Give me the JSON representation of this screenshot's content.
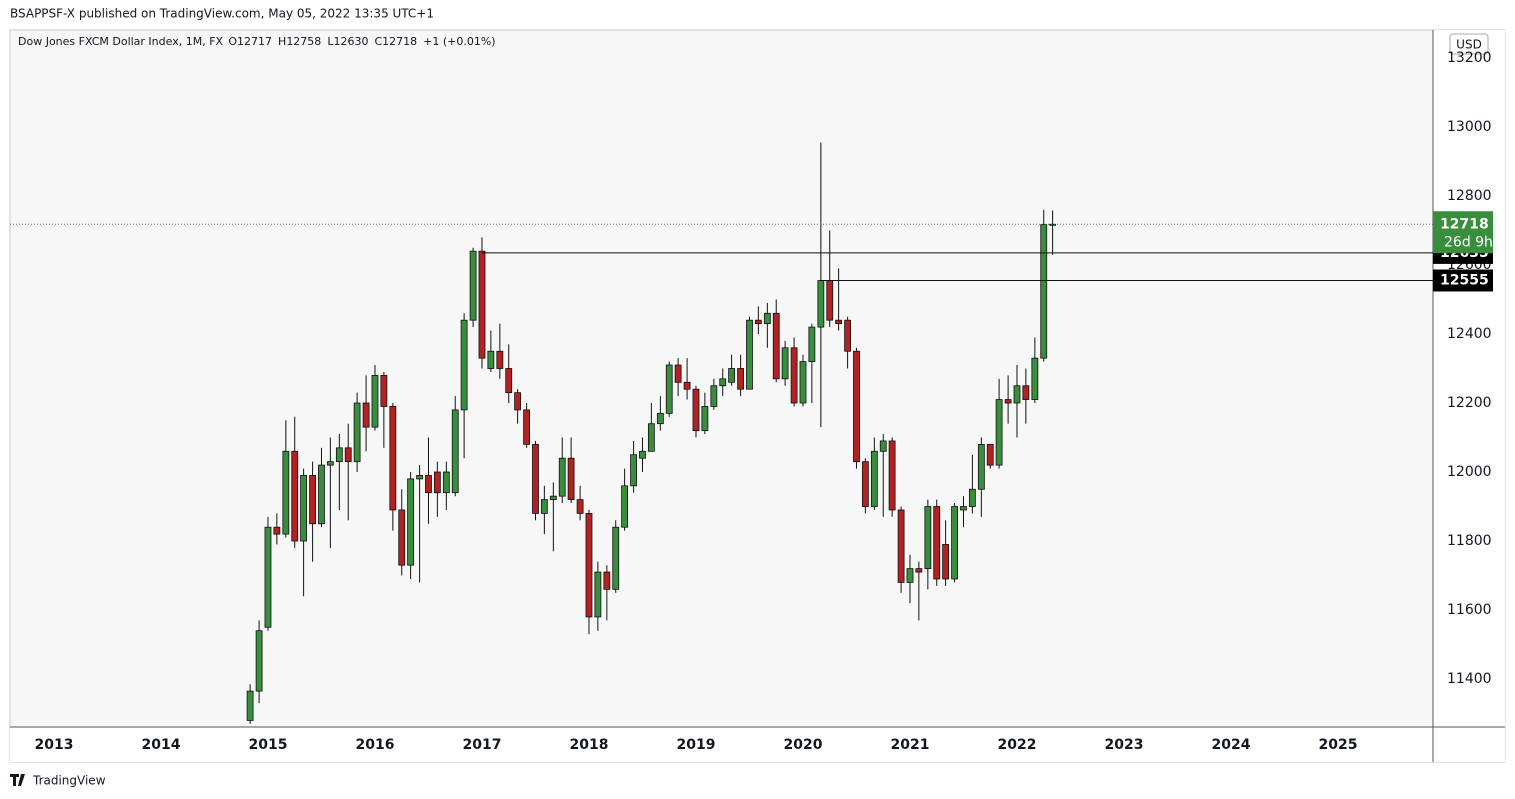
{
  "page": {
    "published": "BSAPPSF-X published on TradingView.com, May 05, 2022 13:35 UTC+1",
    "brand": "TradingView"
  },
  "chart_data": {
    "type": "candlestick",
    "title": "Dow Jones FXCM Dollar Index, 1M, FX",
    "header_values": [
      {
        "label": "O",
        "value": 12717
      },
      {
        "label": "H",
        "value": 12758
      },
      {
        "label": "L",
        "value": 12630
      },
      {
        "label": "C",
        "value": 12718
      }
    ],
    "change": "+1 (+0.01%)",
    "currency": "USD",
    "countdown": "26d 9h",
    "up_color": "#388e3c",
    "down_color": "#b22222",
    "x": [
      2014.833,
      2014.917,
      2015,
      2015.083,
      2015.167,
      2015.25,
      2015.333,
      2015.417,
      2015.5,
      2015.583,
      2015.667,
      2015.75,
      2015.833,
      2015.917,
      2016,
      2016.083,
      2016.167,
      2016.25,
      2016.333,
      2016.417,
      2016.5,
      2016.583,
      2016.667,
      2016.75,
      2016.833,
      2016.917,
      2017,
      2017.083,
      2017.167,
      2017.25,
      2017.333,
      2017.417,
      2017.5,
      2017.583,
      2017.667,
      2017.75,
      2017.833,
      2017.917,
      2018,
      2018.083,
      2018.167,
      2018.25,
      2018.333,
      2018.417,
      2018.5,
      2018.583,
      2018.667,
      2018.75,
      2018.833,
      2018.917,
      2019,
      2019.083,
      2019.167,
      2019.25,
      2019.333,
      2019.417,
      2019.5,
      2019.583,
      2019.667,
      2019.75,
      2019.833,
      2019.917,
      2020,
      2020.083,
      2020.167,
      2020.25,
      2020.333,
      2020.417,
      2020.5,
      2020.583,
      2020.667,
      2020.75,
      2020.833,
      2020.917,
      2021,
      2021.083,
      2021.167,
      2021.25,
      2021.333,
      2021.417,
      2021.5,
      2021.583,
      2021.667,
      2021.75,
      2021.833,
      2021.917,
      2022,
      2022.083,
      2022.167,
      2022.25,
      2022.333
    ],
    "open": [
      11280,
      11365,
      11550,
      11840,
      11820,
      12060,
      11800,
      11990,
      11850,
      12020,
      12030,
      12070,
      12030,
      12200,
      12130,
      12280,
      12190,
      11890,
      11730,
      11980,
      11990,
      12000,
      11940,
      11940,
      12180,
      12440,
      12640,
      12300,
      12350,
      12300,
      12230,
      12180,
      12080,
      11880,
      11920,
      11930,
      12040,
      11920,
      11880,
      11580,
      11710,
      11660,
      11840,
      11960,
      12040,
      12060,
      12140,
      12170,
      12310,
      12260,
      12240,
      12120,
      12190,
      12250,
      12260,
      12300,
      12240,
      12440,
      12430,
      12460,
      12270,
      12360,
      12200,
      12320,
      12420,
      12555,
      12440,
      12440,
      12350,
      12030,
      11900,
      12060,
      12090,
      11890,
      11680,
      11720,
      11720,
      11900,
      11790,
      11690,
      11890,
      11900,
      11950,
      12080,
      12020,
      12210,
      12200,
      12250,
      12210,
      12330,
      12717
    ],
    "high": [
      11385,
      11570,
      11870,
      11880,
      12150,
      12160,
      12010,
      12030,
      12070,
      12100,
      12110,
      12140,
      12230,
      12280,
      12310,
      12290,
      12200,
      11950,
      12000,
      12020,
      12100,
      12030,
      12030,
      12220,
      12460,
      12650,
      12680,
      12410,
      12430,
      12370,
      12240,
      12200,
      12090,
      11960,
      11970,
      12100,
      12100,
      11960,
      11890,
      11740,
      11730,
      11860,
      12010,
      12090,
      12100,
      12200,
      12220,
      12320,
      12330,
      12330,
      12250,
      12230,
      12270,
      12300,
      12340,
      12340,
      12450,
      12480,
      12490,
      12500,
      12380,
      12390,
      12340,
      12430,
      12955,
      12700,
      12590,
      12450,
      12360,
      12040,
      12100,
      12110,
      12100,
      11900,
      11760,
      11740,
      11920,
      11920,
      11860,
      11910,
      11930,
      12050,
      12100,
      12080,
      12270,
      12280,
      12310,
      12300,
      12390,
      12760,
      12758
    ],
    "low": [
      11270,
      11330,
      11540,
      11790,
      11810,
      11780,
      11640,
      11740,
      11840,
      11780,
      11890,
      11860,
      12000,
      12060,
      12120,
      12070,
      11830,
      11700,
      11690,
      11680,
      11850,
      11870,
      11890,
      11930,
      12040,
      12420,
      12300,
      12290,
      12270,
      12200,
      12140,
      12070,
      11860,
      11820,
      11770,
      11910,
      11910,
      11860,
      11530,
      11540,
      11570,
      11650,
      11830,
      11940,
      12000,
      12060,
      12120,
      12160,
      12220,
      12210,
      12100,
      12110,
      12180,
      12220,
      12250,
      12220,
      12240,
      12400,
      12360,
      12260,
      12250,
      12190,
      12190,
      12200,
      12130,
      12420,
      12410,
      12300,
      12010,
      11880,
      11890,
      11870,
      11870,
      11650,
      11620,
      11570,
      11660,
      11670,
      11670,
      11680,
      11840,
      11880,
      11870,
      12010,
      12010,
      12140,
      12100,
      12140,
      12200,
      12320,
      12630
    ],
    "close": [
      11365,
      11540,
      11840,
      11820,
      12060,
      11800,
      11990,
      11850,
      12020,
      12030,
      12070,
      12030,
      12200,
      12130,
      12280,
      12190,
      11890,
      11730,
      11980,
      11990,
      11940,
      11940,
      12000,
      12180,
      12440,
      12640,
      12330,
      12350,
      12300,
      12230,
      12180,
      12080,
      11880,
      11920,
      11930,
      12040,
      11920,
      11880,
      11580,
      11710,
      11660,
      11840,
      11960,
      12050,
      12060,
      12140,
      12170,
      12310,
      12260,
      12240,
      12120,
      12190,
      12250,
      12270,
      12300,
      12240,
      12440,
      12430,
      12460,
      12270,
      12360,
      12200,
      12320,
      12420,
      12555,
      12440,
      12430,
      12350,
      12030,
      11900,
      12060,
      12090,
      11890,
      11680,
      11720,
      11710,
      11900,
      11690,
      11690,
      11900,
      11900,
      11950,
      12080,
      12020,
      12210,
      12200,
      12250,
      12210,
      12330,
      12717,
      12718
    ],
    "levels": [
      {
        "value": 12635,
        "from": 2017
      },
      {
        "value": 12555,
        "from": 2020.167
      }
    ],
    "xlim": [
      2012.589,
      2025.888
    ],
    "xticks": [
      2013,
      2014,
      2015,
      2016,
      2017,
      2018,
      2019,
      2020,
      2021,
      2022,
      2023,
      2024,
      2025
    ],
    "ylim": [
      11261,
      13281
    ],
    "yticks": [
      11400,
      11600,
      11800,
      12000,
      12200,
      12400,
      12600,
      12800,
      13000,
      13200
    ]
  }
}
